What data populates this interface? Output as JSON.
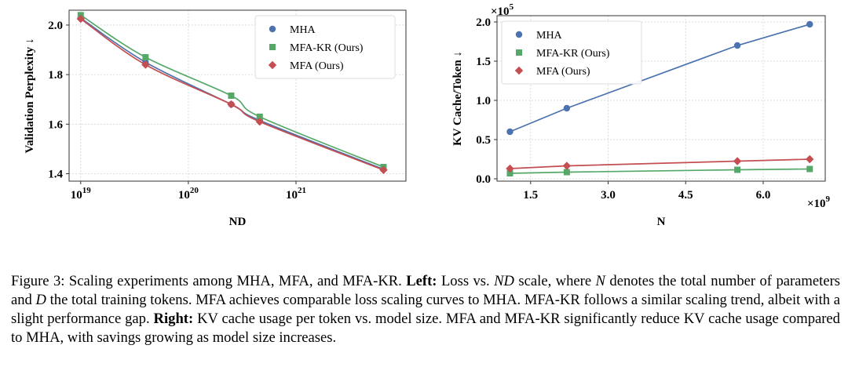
{
  "chart_data": [
    {
      "type": "line",
      "xscale": "log",
      "xlabel": "ND",
      "ylabel": "Validation Perplexity ↓",
      "x_ticks": [
        {
          "v": 1e+19,
          "base": "10",
          "exp": "19"
        },
        {
          "v": 1e+20,
          "base": "10",
          "exp": "20"
        },
        {
          "v": 1e+21,
          "base": "10",
          "exp": "21"
        }
      ],
      "y_ticks": [
        {
          "v": 1.4,
          "label": "1.4"
        },
        {
          "v": 1.6,
          "label": "1.6"
        },
        {
          "v": 1.8,
          "label": "1.8"
        },
        {
          "v": 2.0,
          "label": "2.0"
        }
      ],
      "xlim": [
        7.8e+18,
        1.05e+22
      ],
      "ylim": [
        1.37,
        2.06
      ],
      "grid": true,
      "legend_position": "top-right",
      "series": [
        {
          "name": "MHA",
          "marker": "circle",
          "color": "#4c72b0",
          "x": [
            1e+19,
            4e+19,
            2.5e+20,
            4.6e+20,
            6.5e+21
          ],
          "y": [
            2.028,
            1.85,
            1.68,
            1.615,
            1.418
          ]
        },
        {
          "name": "MFA-KR (Ours)",
          "marker": "square",
          "color": "#55a868",
          "x": [
            1e+19,
            4e+19,
            2.5e+20,
            4.6e+20,
            6.5e+21
          ],
          "y": [
            2.04,
            1.87,
            1.715,
            1.63,
            1.427
          ]
        },
        {
          "name": "MFA (Ours)",
          "marker": "diamond",
          "color": "#c44e52",
          "x": [
            1e+19,
            4e+19,
            2.5e+20,
            4.6e+20,
            6.5e+21
          ],
          "y": [
            2.025,
            1.84,
            1.68,
            1.61,
            1.415
          ]
        }
      ]
    },
    {
      "type": "line",
      "xscale": "linear",
      "xlabel": "N",
      "ylabel": "KV Cache/Token ↓",
      "x_multiplier": {
        "base": "×10",
        "exp": "9"
      },
      "y_multiplier": {
        "base": "×10",
        "exp": "5"
      },
      "x_ticks": [
        {
          "v": 1.5,
          "label": "1.5"
        },
        {
          "v": 3.0,
          "label": "3.0"
        },
        {
          "v": 4.5,
          "label": "4.5"
        },
        {
          "v": 6.0,
          "label": "6.0"
        }
      ],
      "y_ticks": [
        {
          "v": 0.0,
          "label": "0.0"
        },
        {
          "v": 0.5,
          "label": "0.5"
        },
        {
          "v": 1.0,
          "label": "1.0"
        },
        {
          "v": 1.5,
          "label": "1.5"
        },
        {
          "v": 2.0,
          "label": "2.0"
        }
      ],
      "xlim": [
        0.85,
        7.2
      ],
      "ylim": [
        -0.03,
        2.08
      ],
      "grid": true,
      "legend_position": "top-left",
      "series": [
        {
          "name": "MHA",
          "marker": "circle",
          "color": "#4c72b0",
          "x": [
            1.1,
            2.2,
            5.5,
            6.9
          ],
          "y": [
            0.6,
            0.9,
            1.7,
            1.97
          ]
        },
        {
          "name": "MFA-KR (Ours)",
          "marker": "square",
          "color": "#55a868",
          "x": [
            1.1,
            2.2,
            5.5,
            6.9
          ],
          "y": [
            0.07,
            0.085,
            0.115,
            0.125
          ]
        },
        {
          "name": "MFA (Ours)",
          "marker": "diamond",
          "color": "#c44e52",
          "x": [
            1.1,
            2.2,
            5.5,
            6.9
          ],
          "y": [
            0.13,
            0.165,
            0.225,
            0.25
          ]
        }
      ]
    }
  ],
  "caption": {
    "part1": "Figure 3: Scaling experiments among MHA, MFA, and MFA-KR. ",
    "left_label": "Left:",
    "part2": " Loss vs. ",
    "var_nd": "ND",
    "part3": " scale, where ",
    "var_n": "N",
    "part4": " denotes the total number of parameters and ",
    "var_d": "D",
    "part5": " the total training tokens. MFA achieves comparable loss scaling curves to MHA. MFA-KR follows a similar scaling trend, albeit with a slight performance gap. ",
    "right_label": "Right:",
    "part6": " KV cache usage per token vs. model size. MFA and MFA-KR significantly reduce KV cache usage compared to MHA, with savings growing as model size increases."
  }
}
